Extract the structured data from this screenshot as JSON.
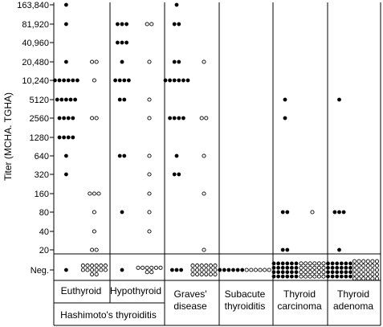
{
  "chart_data": {
    "type": "scatter",
    "ylabel": "Titer (MCHA. TGHA)",
    "y_scale": "log2",
    "y_ticks": [
      "163,840",
      "81,920",
      "40,960",
      "20,480",
      "10,240",
      "5120",
      "2560",
      "1280",
      "640",
      "320",
      "160",
      "80",
      "40",
      "20",
      "Neg."
    ],
    "legend": {
      "filled": "MCHA",
      "open": "TGHA"
    },
    "groups": [
      {
        "label": "Euthyroid",
        "parent": "Hashimoto's thyroiditis",
        "series": [
          {
            "marker": "filled",
            "points": [
              {
                "titer": "163,840",
                "count": 1
              },
              {
                "titer": "81,920",
                "count": 1
              },
              {
                "titer": "20,480",
                "count": 1
              },
              {
                "titer": "10,240",
                "count": 6
              },
              {
                "titer": "5120",
                "count": 5
              },
              {
                "titer": "2560",
                "count": 4
              },
              {
                "titer": "1280",
                "count": 4
              },
              {
                "titer": "640",
                "count": 1
              },
              {
                "titer": "320",
                "count": 1
              },
              {
                "titer": "Neg.",
                "count": 1
              }
            ]
          },
          {
            "marker": "open",
            "points": [
              {
                "titer": "20,480",
                "count": 2
              },
              {
                "titer": "10,240",
                "count": 1
              },
              {
                "titer": "2560",
                "count": 2
              },
              {
                "titer": "160",
                "count": 3
              },
              {
                "titer": "80",
                "count": 1
              },
              {
                "titer": "40",
                "count": 1
              },
              {
                "titer": "20",
                "count": 2
              },
              {
                "titer": "Neg.",
                "count": 14
              }
            ]
          }
        ]
      },
      {
        "label": "Hypothyroid",
        "parent": "Hashimoto's thyroiditis",
        "series": [
          {
            "marker": "filled",
            "points": [
              {
                "titer": "81,920",
                "count": 3
              },
              {
                "titer": "40,960",
                "count": 3
              },
              {
                "titer": "20,480",
                "count": 1
              },
              {
                "titer": "10,240",
                "count": 4
              },
              {
                "titer": "5120",
                "count": 2
              },
              {
                "titer": "640",
                "count": 2
              },
              {
                "titer": "80",
                "count": 1
              },
              {
                "titer": "Neg.",
                "count": 1
              }
            ]
          },
          {
            "marker": "open",
            "points": [
              {
                "titer": "81,920",
                "count": 2
              },
              {
                "titer": "20,480",
                "count": 1
              },
              {
                "titer": "5120",
                "count": 1
              },
              {
                "titer": "2560",
                "count": 1
              },
              {
                "titer": "640",
                "count": 1
              },
              {
                "titer": "320",
                "count": 1
              },
              {
                "titer": "160",
                "count": 1
              },
              {
                "titer": "80",
                "count": 1
              },
              {
                "titer": "40",
                "count": 1
              },
              {
                "titer": "Neg.",
                "count": 8
              }
            ]
          }
        ]
      },
      {
        "label": "Graves' disease",
        "series": [
          {
            "marker": "filled",
            "points": [
              {
                "titer": "163,840",
                "count": 1
              },
              {
                "titer": "81,920",
                "count": 2
              },
              {
                "titer": "20,480",
                "count": 2
              },
              {
                "titer": "10,240",
                "count": 6
              },
              {
                "titer": "2560",
                "count": 4
              },
              {
                "titer": "640",
                "count": 1
              },
              {
                "titer": "320",
                "count": 2
              },
              {
                "titer": "Neg.",
                "count": 3
              }
            ]
          },
          {
            "marker": "open",
            "points": [
              {
                "titer": "20,480",
                "count": 1
              },
              {
                "titer": "2560",
                "count": 2
              },
              {
                "titer": "640",
                "count": 1
              },
              {
                "titer": "160",
                "count": 1
              },
              {
                "titer": "20",
                "count": 1
              },
              {
                "titer": "Neg.",
                "count": 18
              }
            ]
          }
        ]
      },
      {
        "label": "Subacute thyroiditis",
        "series": [
          {
            "marker": "filled",
            "points": [
              {
                "titer": "Neg.",
                "count": 6
              }
            ]
          },
          {
            "marker": "open",
            "points": [
              {
                "titer": "Neg.",
                "count": 6
              }
            ]
          }
        ]
      },
      {
        "label": "Thyroid carcinoma",
        "series": [
          {
            "marker": "filled",
            "points": [
              {
                "titer": "5120",
                "count": 1
              },
              {
                "titer": "2560",
                "count": 1
              },
              {
                "titer": "80",
                "count": 2
              },
              {
                "titer": "20",
                "count": 2
              },
              {
                "titer": "Neg.",
                "count": 24
              }
            ]
          },
          {
            "marker": "open",
            "points": [
              {
                "titer": "80",
                "count": 1
              },
              {
                "titer": "Neg.",
                "count": 24
              }
            ]
          }
        ]
      },
      {
        "label": "Thyroid adenoma",
        "series": [
          {
            "marker": "filled",
            "points": [
              {
                "titer": "5120",
                "count": 1
              },
              {
                "titer": "80",
                "count": 3
              },
              {
                "titer": "20",
                "count": 1
              },
              {
                "titer": "Neg.",
                "count": 24
              }
            ]
          },
          {
            "marker": "open",
            "points": [
              {
                "titer": "Neg.",
                "count": 30
              }
            ]
          }
        ]
      }
    ],
    "category_labels": {
      "euthyroid": "Euthyroid",
      "hypothyroid": "Hypothyroid",
      "hashimoto": "Hashimoto's thyroiditis",
      "graves_1": "Graves'",
      "graves_2": "disease",
      "subacute_1": "Subacute",
      "subacute_2": "thyroiditis",
      "carcinoma_1": "Thyroid",
      "carcinoma_2": "carcinoma",
      "adenoma_1": "Thyroid",
      "adenoma_2": "adenoma"
    }
  }
}
